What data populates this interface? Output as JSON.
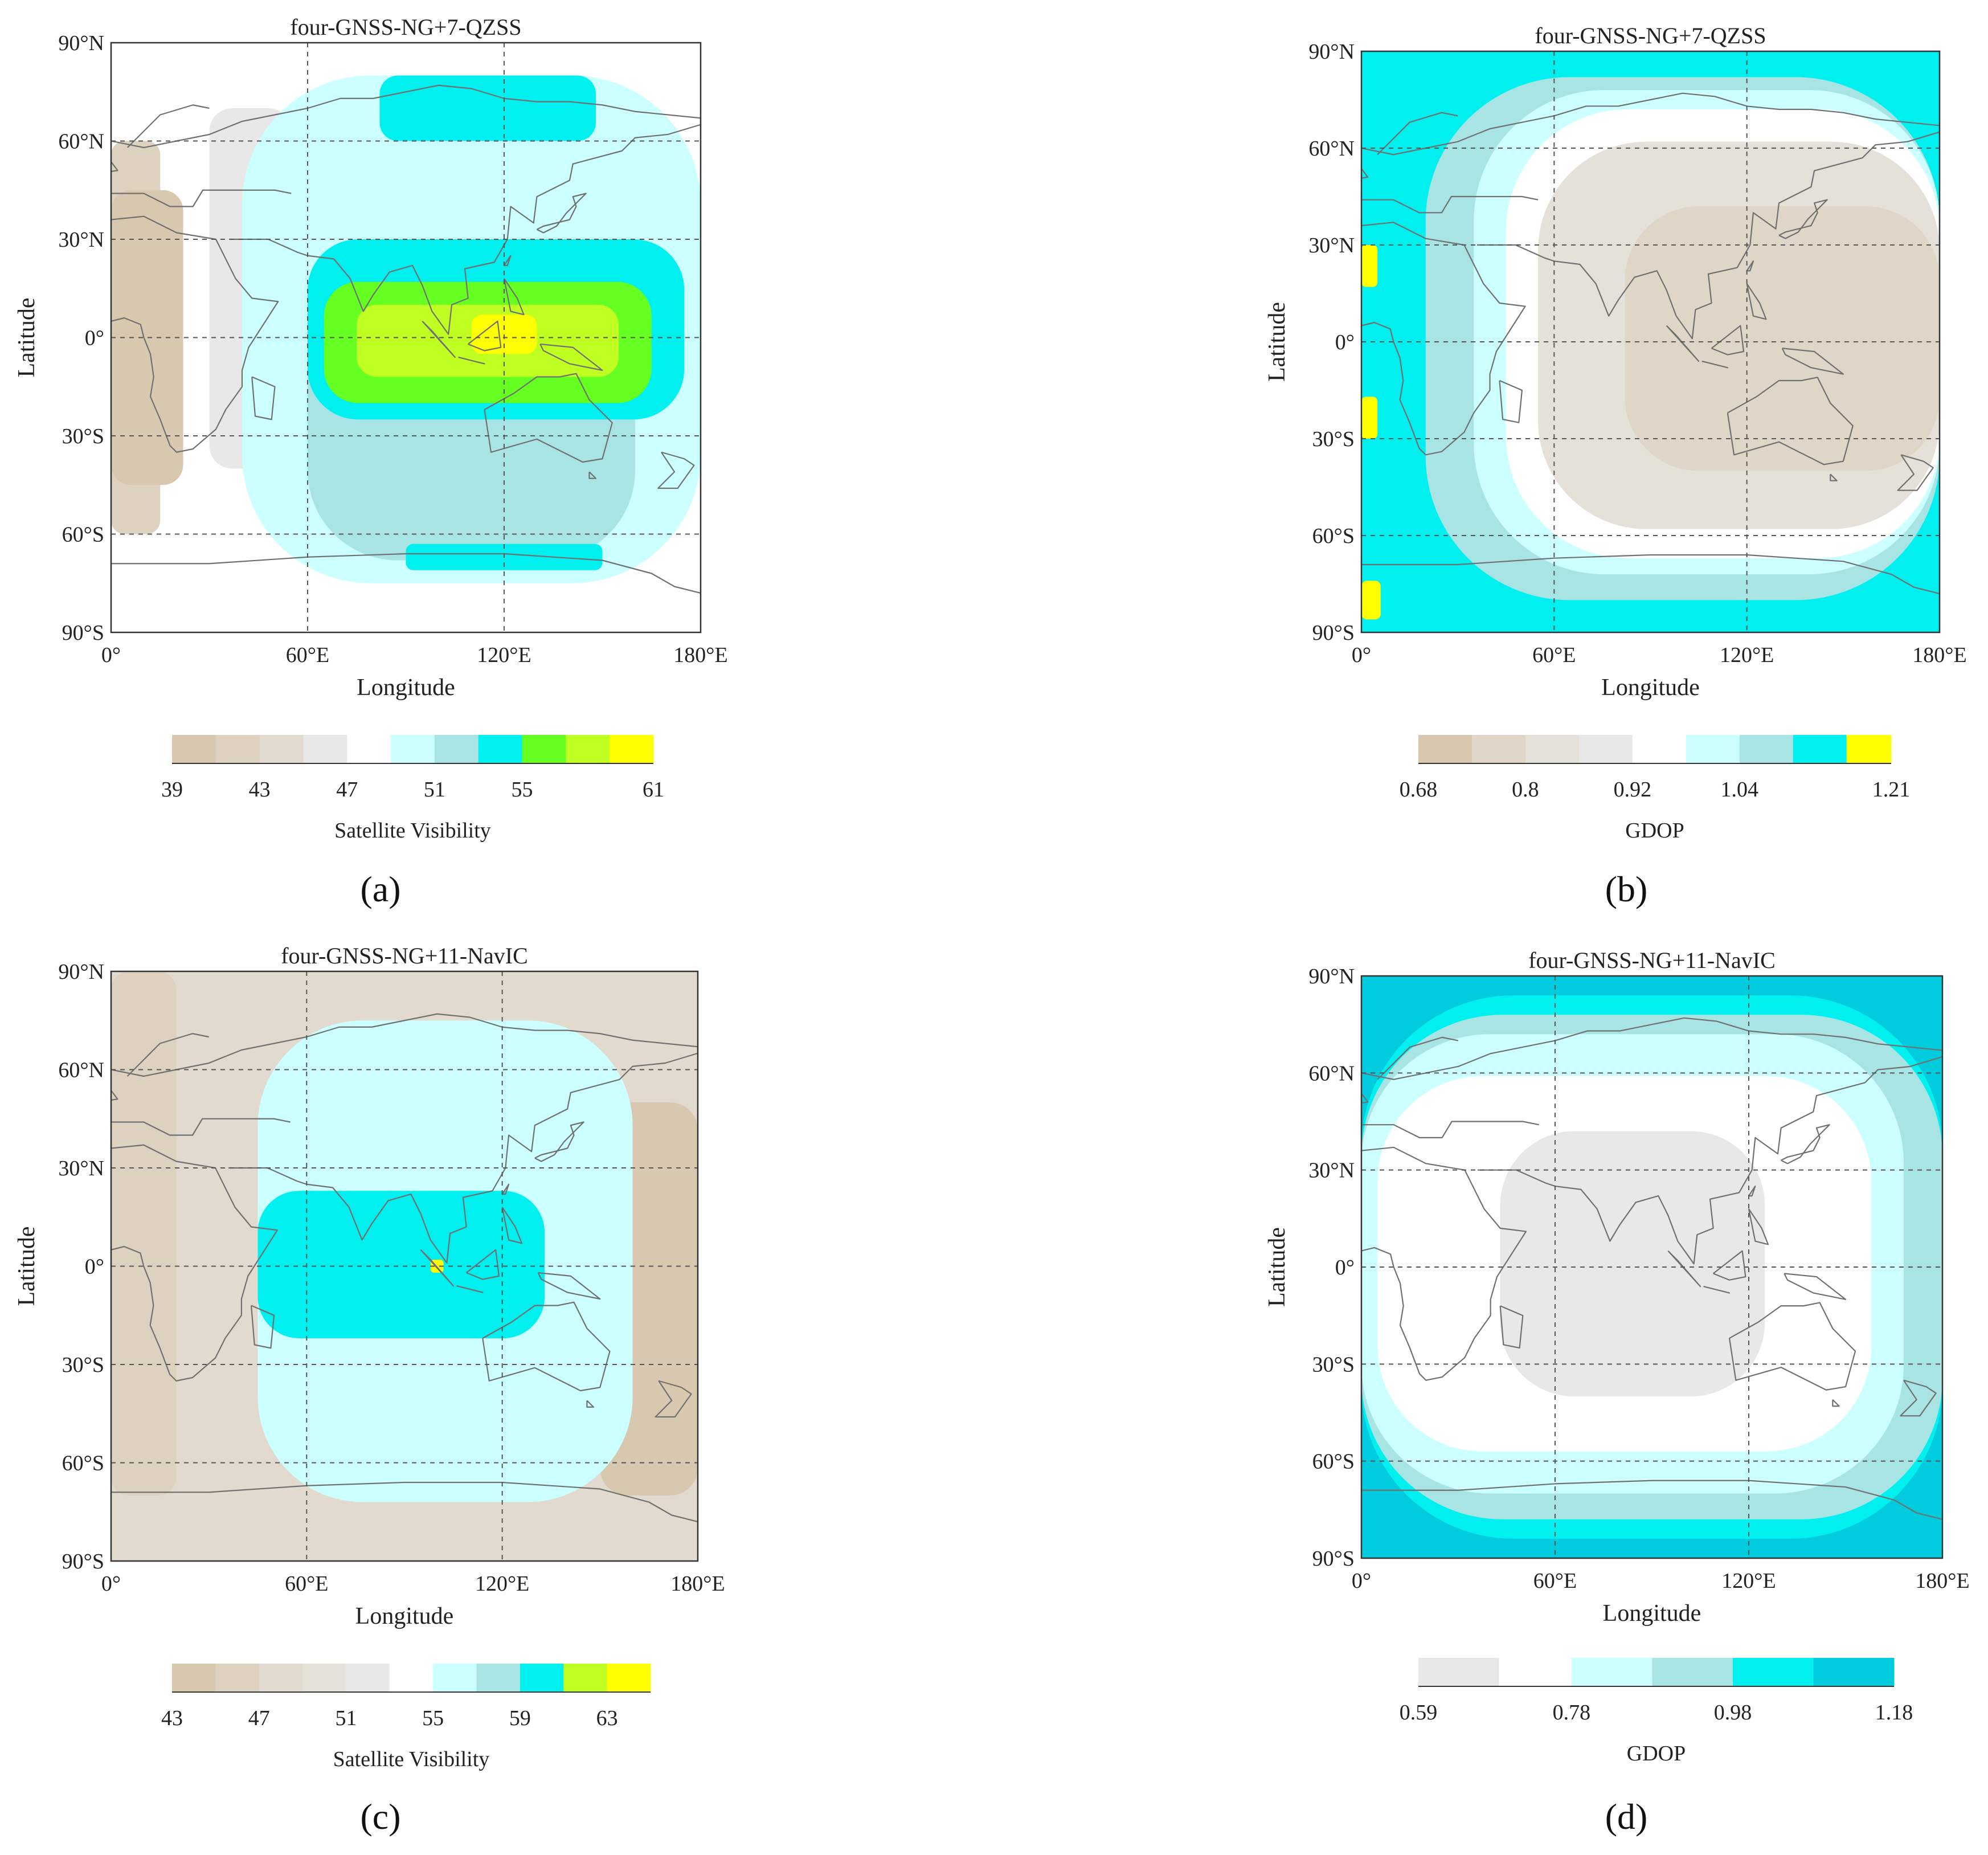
{
  "figure": {
    "panels": [
      {
        "id": "a",
        "caption": "(a)",
        "chart_data": {
          "type": "heatmap",
          "title": "four-GNSS-NG+7-QZSS",
          "xlabel": "Longitude",
          "ylabel": "Latitude",
          "xlim": [
            0,
            180
          ],
          "ylim": [
            -90,
            90
          ],
          "xticks": [
            "0°",
            "60°E",
            "120°E",
            "180°E"
          ],
          "yticks": [
            "90°N",
            "60°N",
            "30°N",
            "0°",
            "30°S",
            "60°S",
            "90°S"
          ],
          "colorbar": {
            "label": "Satellite Visibility",
            "ticks": [
              "39",
              "43",
              "47",
              "51",
              "55",
              "61"
            ],
            "levels": [
              39,
              41,
              43,
              45,
              47,
              49,
              51,
              53,
              55,
              57,
              59,
              61
            ],
            "colors": [
              "#d8c8b0",
              "#ddd1bf",
              "#e2dace",
              "#e8e8e8",
              "#ffffff",
              "#ccffff",
              "#a9e4e4",
              "#00f0f0",
              "#66ff22",
              "#c0ff22",
              "#ffff00"
            ]
          },
          "field": {
            "background_level": 4,
            "regions": [
              {
                "lon": [
                  0,
                  15
                ],
                "lat": [
                  -60,
                  60
                ],
                "level": 1
              },
              {
                "lon": [
                  0,
                  22
                ],
                "lat": [
                  -45,
                  45
                ],
                "level": 0
              },
              {
                "lon": [
                  30,
                  55
                ],
                "lat": [
                  -40,
                  70
                ],
                "level": 3
              },
              {
                "lon": [
                  40,
                  180
                ],
                "lat": [
                  -75,
                  80
                ],
                "level": 5
              },
              {
                "lon": [
                  60,
                  160
                ],
                "lat": [
                  -68,
                  30
                ],
                "level": 6
              },
              {
                "lon": [
                  82,
                  148
                ],
                "lat": [
                  60,
                  80
                ],
                "level": 7
              },
              {
                "lon": [
                  60,
                  175
                ],
                "lat": [
                  -25,
                  30
                ],
                "level": 7
              },
              {
                "lon": [
                  65,
                  165
                ],
                "lat": [
                  -20,
                  17
                ],
                "level": 8
              },
              {
                "lon": [
                  75,
                  155
                ],
                "lat": [
                  -12,
                  10
                ],
                "level": 9
              },
              {
                "lon": [
                  110,
                  130
                ],
                "lat": [
                  -5,
                  7
                ],
                "level": 10
              },
              {
                "lon": [
                  90,
                  150
                ],
                "lat": [
                  -71,
                  -63
                ],
                "level": 7
              }
            ]
          }
        }
      },
      {
        "id": "b",
        "caption": "(b)",
        "chart_data": {
          "type": "heatmap",
          "title": "four-GNSS-NG+7-QZSS",
          "xlabel": "Longitude",
          "ylabel": "Latitude",
          "xlim": [
            0,
            180
          ],
          "ylim": [
            -90,
            90
          ],
          "xticks": [
            "0°",
            "60°E",
            "120°E",
            "180°E"
          ],
          "yticks": [
            "90°N",
            "60°N",
            "30°N",
            "0°",
            "30°S",
            "60°S",
            "90°S"
          ],
          "colorbar": {
            "label": "GDOP",
            "ticks": [
              "0.68",
              "0.8",
              "0.92",
              "1.04",
              "1.21"
            ],
            "levels": [
              0.68,
              0.74,
              0.8,
              0.86,
              0.92,
              0.98,
              1.04,
              1.1,
              1.16,
              1.21
            ],
            "colors": [
              "#d8c8b0",
              "#e0d6c8",
              "#e5e0d8",
              "#e8e8e8",
              "#ffffff",
              "#ccffff",
              "#a9e4e4",
              "#00f0f0",
              "#ffff00"
            ]
          },
          "field": {
            "background_level": 7,
            "regions": [
              {
                "lon": [
                  20,
                  180
                ],
                "lat": [
                  -80,
                  82
                ],
                "level": 6
              },
              {
                "lon": [
                  35,
                  180
                ],
                "lat": [
                  -72,
                  78
                ],
                "level": 5
              },
              {
                "lon": [
                  45,
                  180
                ],
                "lat": [
                  -67,
                  72
                ],
                "level": 4
              },
              {
                "lon": [
                  55,
                  180
                ],
                "lat": [
                  -58,
                  62
                ],
                "level": 2
              },
              {
                "lon": [
                  82,
                  180
                ],
                "lat": [
                  -40,
                  42
                ],
                "level": 1
              },
              {
                "lon": [
                  0,
                  5
                ],
                "lat": [
                  17,
                  30
                ],
                "level": 8
              },
              {
                "lon": [
                  0,
                  5
                ],
                "lat": [
                  -30,
                  -17
                ],
                "level": 8
              },
              {
                "lon": [
                  0,
                  6
                ],
                "lat": [
                  -86,
                  -74
                ],
                "level": 8
              }
            ]
          }
        }
      },
      {
        "id": "c",
        "caption": "(c)",
        "chart_data": {
          "type": "heatmap",
          "title": "four-GNSS-NG+11-NavIC",
          "xlabel": "Longitude",
          "ylabel": "Latitude",
          "xlim": [
            0,
            180
          ],
          "ylim": [
            -90,
            90
          ],
          "xticks": [
            "0°",
            "60°E",
            "120°E",
            "180°E"
          ],
          "yticks": [
            "90°N",
            "60°N",
            "30°N",
            "0°",
            "30°S",
            "60°S",
            "90°S"
          ],
          "colorbar": {
            "label": "Satellite Visibility",
            "ticks": [
              "43",
              "47",
              "51",
              "55",
              "59",
              "63"
            ],
            "levels": [
              43,
              45,
              47,
              49,
              51,
              53,
              55,
              57,
              59,
              61,
              63,
              65
            ],
            "colors": [
              "#d8c8b0",
              "#ddd1bf",
              "#e2dace",
              "#e5e0d8",
              "#e8e8e8",
              "#ffffff",
              "#ccffff",
              "#a9e4e4",
              "#00f0f0",
              "#c0ff22",
              "#ffff00"
            ]
          },
          "field": {
            "background_level": 2,
            "regions": [
              {
                "lon": [
                  0,
                  20
                ],
                "lat": [
                  -70,
                  90
                ],
                "level": 1
              },
              {
                "lon": [
                  150,
                  180
                ],
                "lat": [
                  -70,
                  50
                ],
                "level": 0
              },
              {
                "lon": [
                  45,
                  160
                ],
                "lat": [
                  -72,
                  75
                ],
                "level": 6
              },
              {
                "lon": [
                  45,
                  133
                ],
                "lat": [
                  -22,
                  23
                ],
                "level": 8
              },
              {
                "lon": [
                  98,
                  102
                ],
                "lat": [
                  -2,
                  2
                ],
                "level": 10
              }
            ]
          }
        }
      },
      {
        "id": "d",
        "caption": "(d)",
        "chart_data": {
          "type": "heatmap",
          "title": "four-GNSS-NG+11-NavIC",
          "xlabel": "Longitude",
          "ylabel": "Latitude",
          "xlim": [
            0,
            180
          ],
          "ylim": [
            -90,
            90
          ],
          "xticks": [
            "0°",
            "60°E",
            "120°E",
            "180°E"
          ],
          "yticks": [
            "90°N",
            "60°N",
            "30°N",
            "0°",
            "30°S",
            "60°S",
            "90°S"
          ],
          "colorbar": {
            "label": "GDOP",
            "ticks": [
              "0.59",
              "0.78",
              "0.98",
              "1.18"
            ],
            "levels": [
              0.59,
              0.69,
              0.78,
              0.88,
              0.98,
              1.08,
              1.18
            ],
            "colors": [
              "#e8e8e8",
              "#ffffff",
              "#ccffff",
              "#a9e4e4",
              "#00f0f0",
              "#00ccdd"
            ]
          },
          "field": {
            "background_level": 5,
            "regions": [
              {
                "lon": [
                  0,
                  180
                ],
                "lat": [
                  -84,
                  84
                ],
                "level": 4
              },
              {
                "lon": [
                  0,
                  180
                ],
                "lat": [
                  -78,
                  78
                ],
                "level": 3
              },
              {
                "lon": [
                  0,
                  168
                ],
                "lat": [
                  -70,
                  72
                ],
                "level": 2
              },
              {
                "lon": [
                  5,
                  158
                ],
                "lat": [
                  -57,
                  59
                ],
                "level": 1
              },
              {
                "lon": [
                  43,
                  125
                ],
                "lat": [
                  -40,
                  42
                ],
                "level": 0
              }
            ]
          }
        }
      }
    ]
  }
}
